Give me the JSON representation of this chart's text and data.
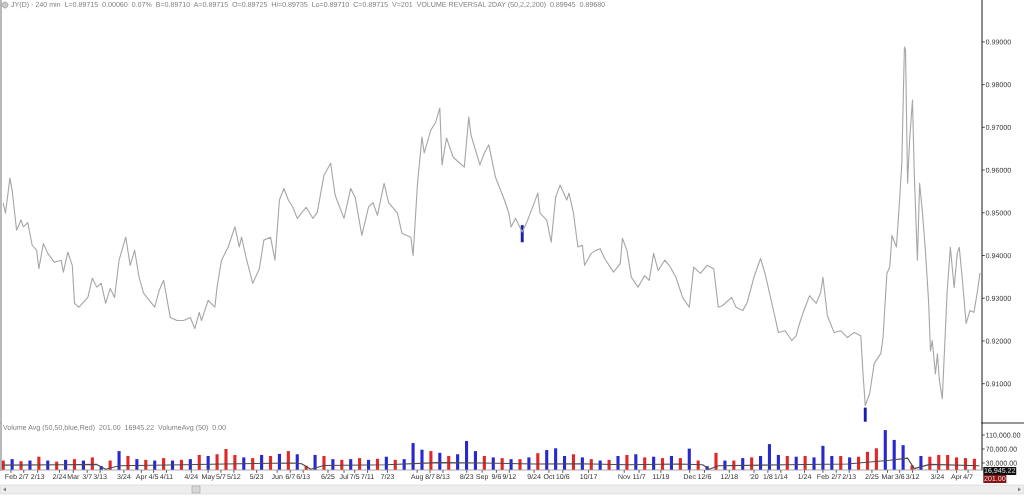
{
  "chart_data": [
    {
      "type": "line",
      "title": "JY(D) - 240 min  L=0.89715  0.00060  0.07%  B=0.89710  A=0.89715  O=0.89725  Hi=0.89735  Lo=0.89710  C=0.89715  V=201  VOLUME REVERSAL 2DAY (50,2,2,200)  0.89945  0.89680",
      "series": [
        {
          "color": "#a6a6a6",
          "x": [
            "2019-01-29",
            "2019-01-30",
            "2019-02-01",
            "2019-02-02",
            "2019-02-04",
            "2019-02-06",
            "2019-02-07",
            "2019-02-09",
            "2019-02-11",
            "2019-02-13",
            "2019-02-14",
            "2019-02-16",
            "2019-02-18",
            "2019-02-21",
            "2019-02-24",
            "2019-02-25",
            "2019-02-27",
            "2019-03-01",
            "2019-03-02",
            "2019-03-04",
            "2019-03-08",
            "2019-03-10",
            "2019-03-12",
            "2019-03-14",
            "2019-03-16",
            "2019-03-18",
            "2019-03-20",
            "2019-03-22",
            "2019-03-25",
            "2019-03-27",
            "2019-03-29",
            "2019-03-31",
            "2019-04-02",
            "2019-04-07",
            "2019-04-09",
            "2019-04-11",
            "2019-04-14",
            "2019-04-17",
            "2019-04-20",
            "2019-04-23",
            "2019-04-25",
            "2019-04-27",
            "2019-04-28",
            "2019-05-01",
            "2019-05-04",
            "2019-05-05",
            "2019-05-07",
            "2019-05-10",
            "2019-05-13",
            "2019-05-15",
            "2019-05-16",
            "2019-05-18",
            "2019-05-21",
            "2019-05-24",
            "2019-05-26",
            "2019-05-29",
            "2019-05-31",
            "2019-06-02",
            "2019-06-04",
            "2019-06-06",
            "2019-06-08",
            "2019-06-10",
            "2019-06-14",
            "2019-06-17",
            "2019-06-19",
            "2019-06-22",
            "2019-06-25",
            "2019-06-27",
            "2019-07-01",
            "2019-07-04",
            "2019-07-06",
            "2019-07-09",
            "2019-07-12",
            "2019-07-14",
            "2019-07-16",
            "2019-07-19",
            "2019-07-21",
            "2019-07-25",
            "2019-07-27",
            "2019-07-31",
            "2019-08-01",
            "2019-08-03",
            "2019-08-05",
            "2019-08-06",
            "2019-08-09",
            "2019-08-11",
            "2019-08-13",
            "2019-08-14",
            "2019-08-16",
            "2019-08-19",
            "2019-08-22",
            "2019-08-24",
            "2019-08-26",
            "2019-08-27",
            "2019-08-31",
            "2019-09-02",
            "2019-09-04",
            "2019-09-07",
            "2019-09-11",
            "2019-09-13",
            "2019-09-14",
            "2019-09-16",
            "2019-09-19",
            "2019-09-21",
            "2019-09-24",
            "2019-09-26",
            "2019-09-27",
            "2019-09-30",
            "2019-10-02",
            "2019-10-04",
            "2019-10-06",
            "2019-10-09",
            "2019-10-10",
            "2019-10-12",
            "2019-10-14",
            "2019-10-16",
            "2019-10-17",
            "2019-10-20",
            "2019-10-22",
            "2019-10-24",
            "2019-10-26",
            "2019-10-30",
            "2019-11-02",
            "2019-11-03",
            "2019-11-05",
            "2019-11-07",
            "2019-11-10",
            "2019-11-13",
            "2019-11-15",
            "2019-11-17",
            "2019-11-19",
            "2019-11-22",
            "2019-11-24",
            "2019-11-27",
            "2019-11-30",
            "2019-12-03",
            "2019-12-05",
            "2019-12-08",
            "2019-12-11",
            "2019-12-14",
            "2019-12-16",
            "2019-12-18",
            "2019-12-22",
            "2019-12-24",
            "2019-12-27",
            "2019-12-29",
            "2020-01-01",
            "2020-01-04",
            "2020-01-06",
            "2020-01-10",
            "2020-01-12",
            "2020-01-15",
            "2020-01-18",
            "2020-01-20",
            "2020-01-21",
            "2020-01-23",
            "2020-01-26",
            "2020-01-29",
            "2020-01-31",
            "2020-02-01",
            "2020-02-03",
            "2020-02-06",
            "2020-02-09",
            "2020-02-12",
            "2020-02-15",
            "2020-02-18",
            "2020-02-19",
            "2020-02-20",
            "2020-02-22",
            "2020-02-24",
            "2020-02-27",
            "2020-02-28",
            "2020-02-29T17:00",
            "2020-03-02",
            "2020-03-03",
            "2020-03-05",
            "2020-03-06T12:00",
            "2020-03-07T10:00",
            "2020-03-08T14:00",
            "2020-03-09T02:00",
            "2020-03-10",
            "2020-03-10T22:00",
            "2020-03-12T05:00",
            "2020-03-13",
            "2020-03-14T10:00",
            "2020-03-15T10:00",
            "2020-03-16T17:00",
            "2020-03-18",
            "2020-03-19T10:00",
            "2020-03-20T07:00",
            "2020-03-21T02:00",
            "2020-03-22T12:00",
            "2020-03-23T10:00",
            "2020-03-24T07:00",
            "2020-03-25T14:00",
            "2020-03-26T22:00",
            "2020-03-27T19:00",
            "2020-03-29T05:00",
            "2020-03-30T22:00",
            "2020-04-01T07:00",
            "2020-04-02T05:00",
            "2020-04-03T12:00",
            "2020-04-05T07:00",
            "2020-04-07",
            "2020-04-08T19:00",
            "2020-04-10T05:00",
            "2020-04-11T12:00"
          ],
          "values": [
            0.9522,
            0.9499,
            0.9581,
            0.9553,
            0.9459,
            0.9483,
            0.9467,
            0.9477,
            0.9424,
            0.9412,
            0.9369,
            0.9428,
            0.9405,
            0.9384,
            0.9389,
            0.9361,
            0.9408,
            0.9377,
            0.9288,
            0.9279,
            0.9302,
            0.9347,
            0.9326,
            0.9335,
            0.9288,
            0.9323,
            0.9302,
            0.9389,
            0.9443,
            0.9377,
            0.9412,
            0.9349,
            0.9312,
            0.9279,
            0.9318,
            0.9342,
            0.9255,
            0.9248,
            0.9248,
            0.9255,
            0.9229,
            0.9267,
            0.9248,
            0.9295,
            0.9279,
            0.9326,
            0.9389,
            0.942,
            0.9467,
            0.942,
            0.9443,
            0.9396,
            0.9335,
            0.9369,
            0.9436,
            0.9443,
            0.9389,
            0.953,
            0.9557,
            0.953,
            0.9513,
            0.9487,
            0.9513,
            0.9487,
            0.9501,
            0.9588,
            0.9616,
            0.9541,
            0.9487,
            0.9557,
            0.9536,
            0.9447,
            0.9513,
            0.9524,
            0.9494,
            0.9569,
            0.9524,
            0.9499,
            0.9452,
            0.9443,
            0.94,
            0.9569,
            0.9677,
            0.964,
            0.9694,
            0.971,
            0.9745,
            0.9612,
            0.9675,
            0.963,
            0.9616,
            0.9607,
            0.9724,
            0.9682,
            0.9612,
            0.964,
            0.9659,
            0.9583,
            0.953,
            0.9499,
            0.9467,
            0.9487,
            0.9455,
            0.9477,
            0.9518,
            0.9546,
            0.9499,
            0.9483,
            0.9431,
            0.9536,
            0.9565,
            0.953,
            0.9546,
            0.9499,
            0.942,
            0.9424,
            0.9377,
            0.9405,
            0.9412,
            0.9416,
            0.9393,
            0.9361,
            0.9381,
            0.944,
            0.9412,
            0.9349,
            0.9326,
            0.9353,
            0.9342,
            0.9405,
            0.9365,
            0.9389,
            0.9377,
            0.9349,
            0.9302,
            0.9279,
            0.9373,
            0.9358,
            0.9377,
            0.9369,
            0.9279,
            0.9283,
            0.9302,
            0.9279,
            0.9271,
            0.929,
            0.9349,
            0.9393,
            0.9358,
            0.9267,
            0.922,
            0.9224,
            0.9201,
            0.9212,
            0.9232,
            0.9265,
            0.9306,
            0.9288,
            0.9314,
            0.9349,
            0.9259,
            0.922,
            0.9224,
            0.9208,
            0.922,
            0.9212,
            0.9124,
            0.9049,
            0.9077,
            0.9147,
            0.9171,
            0.9208,
            0.9358,
            0.9373,
            0.9447,
            0.942,
            0.9536,
            0.9616,
            0.9888,
            0.9881,
            0.9569,
            0.967,
            0.9764,
            0.9593,
            0.9389,
            0.9569,
            0.9499,
            0.9412,
            0.9295,
            0.9177,
            0.9201,
            0.9123,
            0.917,
            0.9107,
            0.9065,
            0.9217,
            0.9318,
            0.9419,
            0.9325,
            0.9405,
            0.9419,
            0.9349,
            0.9241,
            0.9271,
            0.9267,
            0.9311,
            0.9358
          ]
        },
        {
          "type": "bar",
          "color": "#1a1ab4",
          "x": [
            "2019-09-19",
            "2020-02-20"
          ],
          "base": [
            0.9431,
            0.9011
          ],
          "values": [
            0.004,
            0.0033
          ]
        }
      ],
      "line_style": "solid",
      "xlim": [
        "2019-01-28",
        "2020-04-12T10:00"
      ],
      "ylim": [
        0.9008,
        0.9998
      ],
      "yticks": [
        {
          "value": 0.91,
          "label": "0.91000"
        },
        {
          "value": 0.92,
          "label": "0.92000"
        },
        {
          "value": 0.93,
          "label": "0.93000"
        },
        {
          "value": 0.94,
          "label": "0.94000"
        },
        {
          "value": 0.95,
          "label": "0.95000"
        },
        {
          "value": 0.96,
          "label": "0.96000"
        },
        {
          "value": 0.97,
          "label": "0.97000"
        },
        {
          "value": 0.98,
          "label": "0.98000"
        },
        {
          "value": 0.99,
          "label": "0.99000"
        }
      ],
      "tick_labels": "y"
    },
    {
      "type": "bar",
      "title": "Volume Avg (50,50,blue,Red)  201.00  16945.22  VolumeAvg (50)  0.00",
      "series": [
        {
          "x": [
            "2019-01-29",
            "2019-02-02",
            "2019-02-06",
            "2019-02-10",
            "2019-02-14",
            "2019-02-18",
            "2019-02-22",
            "2019-02-26",
            "2019-03-02",
            "2019-03-06",
            "2019-03-10",
            "2019-03-14",
            "2019-03-18",
            "2019-03-22",
            "2019-03-26",
            "2019-03-30",
            "2019-04-03",
            "2019-04-07",
            "2019-04-11",
            "2019-04-15",
            "2019-04-19",
            "2019-04-23",
            "2019-04-27",
            "2019-05-01",
            "2019-05-05",
            "2019-05-09",
            "2019-05-13",
            "2019-05-17",
            "2019-05-21",
            "2019-05-25",
            "2019-05-29",
            "2019-06-02",
            "2019-06-06",
            "2019-06-10",
            "2019-06-14",
            "2019-06-18",
            "2019-06-22",
            "2019-06-26",
            "2019-06-30",
            "2019-07-04",
            "2019-07-08",
            "2019-07-12",
            "2019-07-16",
            "2019-07-20",
            "2019-07-24",
            "2019-07-28",
            "2019-08-01",
            "2019-08-05",
            "2019-08-09",
            "2019-08-13",
            "2019-08-17",
            "2019-08-21",
            "2019-08-25",
            "2019-08-29",
            "2019-09-02",
            "2019-09-06",
            "2019-09-10",
            "2019-09-14",
            "2019-09-18",
            "2019-09-22",
            "2019-09-26",
            "2019-09-30",
            "2019-10-04",
            "2019-10-08",
            "2019-10-12",
            "2019-10-16",
            "2019-10-20",
            "2019-10-24",
            "2019-10-28",
            "2019-11-01",
            "2019-11-05",
            "2019-11-09",
            "2019-11-13",
            "2019-11-17",
            "2019-11-21",
            "2019-11-25",
            "2019-11-29",
            "2019-12-03",
            "2019-12-07",
            "2019-12-11",
            "2019-12-15",
            "2019-12-19",
            "2019-12-23",
            "2019-12-27",
            "2019-12-31",
            "2020-01-04",
            "2020-01-08",
            "2020-01-12",
            "2020-01-16",
            "2020-01-20",
            "2020-01-24",
            "2020-01-28",
            "2020-02-01",
            "2020-02-05",
            "2020-02-09",
            "2020-02-13",
            "2020-02-17",
            "2020-02-21",
            "2020-02-25",
            "2020-02-29",
            "2020-03-04",
            "2020-03-08",
            "2020-03-12",
            "2020-03-16",
            "2020-03-20",
            "2020-03-24",
            "2020-03-28",
            "2020-04-01",
            "2020-04-05",
            "2020-04-09"
          ],
          "values": [
            37000,
            41000,
            35000,
            37000,
            48000,
            37000,
            34000,
            39000,
            41000,
            37000,
            46000,
            21000,
            37000,
            64000,
            50000,
            41000,
            39000,
            37000,
            44000,
            37000,
            39000,
            41000,
            53000,
            50000,
            55000,
            70000,
            53000,
            46000,
            44000,
            53000,
            50000,
            56000,
            64000,
            55000,
            22000,
            53000,
            50000,
            41000,
            39000,
            41000,
            44000,
            39000,
            42000,
            48000,
            39000,
            41000,
            87000,
            68000,
            64000,
            59000,
            50000,
            55000,
            93000,
            64000,
            50000,
            46000,
            44000,
            41000,
            41000,
            46000,
            58000,
            67000,
            72000,
            50000,
            55000,
            46000,
            41000,
            37000,
            39000,
            50000,
            53000,
            55000,
            46000,
            48000,
            44000,
            50000,
            44000,
            71000,
            37000,
            21000,
            59000,
            37000,
            37000,
            44000,
            46000,
            50000,
            84000,
            53000,
            50000,
            48000,
            50000,
            46000,
            79000,
            50000,
            50000,
            46000,
            48000,
            62000,
            72000,
            124000,
            96000,
            81000,
            23000,
            50000,
            48000,
            53000,
            53000,
            46000,
            44000,
            42000
          ],
          "colors": [
            "#e02828",
            "#2828d0",
            "#e02828",
            "#2828d0",
            "#e02828",
            "#2828d0",
            "#e02828",
            "#2828d0",
            "#e02828",
            "#2828d0",
            "#e02828",
            "#2828d0",
            "#e02828",
            "#2828d0",
            "#e02828",
            "#2828d0",
            "#e02828",
            "#2828d0",
            "#e02828",
            "#2828d0",
            "#e02828",
            "#2828d0",
            "#e02828",
            "#2828d0",
            "#e02828",
            "#e02828",
            "#e02828",
            "#2828d0",
            "#e02828",
            "#2828d0",
            "#e02828",
            "#2828d0",
            "#e02828",
            "#2828d0",
            "#e02828",
            "#2828d0",
            "#e02828",
            "#2828d0",
            "#e02828",
            "#2828d0",
            "#e02828",
            "#2828d0",
            "#e02828",
            "#2828d0",
            "#e02828",
            "#2828d0",
            "#2828d0",
            "#2828d0",
            "#e02828",
            "#2828d0",
            "#e02828",
            "#2828d0",
            "#2828d0",
            "#2828d0",
            "#e02828",
            "#2828d0",
            "#e02828",
            "#2828d0",
            "#e02828",
            "#2828d0",
            "#e02828",
            "#2828d0",
            "#2828d0",
            "#2828d0",
            "#e02828",
            "#2828d0",
            "#e02828",
            "#2828d0",
            "#e02828",
            "#2828d0",
            "#e02828",
            "#2828d0",
            "#e02828",
            "#2828d0",
            "#e02828",
            "#2828d0",
            "#e02828",
            "#2828d0",
            "#e02828",
            "#2828d0",
            "#e02828",
            "#2828d0",
            "#e02828",
            "#2828d0",
            "#e02828",
            "#2828d0",
            "#2828d0",
            "#2828d0",
            "#e02828",
            "#2828d0",
            "#e02828",
            "#2828d0",
            "#2828d0",
            "#2828d0",
            "#e02828",
            "#2828d0",
            "#e02828",
            "#e02828",
            "#e02828",
            "#2828d0",
            "#2828d0",
            "#2828d0",
            "#e02828",
            "#2828d0",
            "#e02828",
            "#e02828",
            "#e02828",
            "#e02828",
            "#e02828",
            "#e02828"
          ]
        },
        {
          "type": "line",
          "color": "#4a4a4a",
          "x": [
            "2019-01-29",
            "2019-02-25",
            "2019-03-12",
            "2019-03-16",
            "2019-03-22",
            "2019-04-20",
            "2019-05-15",
            "2019-06-08",
            "2019-06-12",
            "2019-06-16",
            "2019-06-22",
            "2019-07-20",
            "2019-08-12",
            "2019-09-01",
            "2019-09-25",
            "2019-10-15",
            "2019-11-05",
            "2019-11-28",
            "2019-12-09",
            "2019-12-12",
            "2019-12-16",
            "2020-01-15",
            "2020-02-12",
            "2020-03-02",
            "2020-03-10",
            "2020-03-13",
            "2020-03-20",
            "2020-04-11"
          ],
          "values": [
            24000,
            25000,
            26000,
            12000,
            22000,
            25000,
            28000,
            30000,
            28000,
            12000,
            23000,
            25000,
            31000,
            30000,
            27000,
            28000,
            25000,
            27000,
            25000,
            12000,
            22000,
            25000,
            27000,
            38000,
            44000,
            14000,
            26000,
            22000
          ]
        }
      ],
      "annotations": [
        "16,945.22",
        "201.00"
      ],
      "line_style": "solid",
      "xlim": [
        "2019-01-28",
        "2020-04-12T10:00"
      ],
      "ylim": [
        10000,
        144300
      ],
      "yticks": [
        {
          "value": 30000,
          "label": "30,000.00"
        },
        {
          "value": 70000,
          "label": "70,000.00"
        },
        {
          "value": 110000,
          "label": "110,000.00"
        }
      ],
      "xticks": [
        {
          "value": "2019-02-01T11:00",
          "label": "Feb"
        },
        {
          "value": "2019-02-07T05:00",
          "label": "2/7"
        },
        {
          "value": "2019-02-13T11:00",
          "label": "2/13"
        },
        {
          "value": "2019-02-23T06:00",
          "label": "2/24"
        },
        {
          "value": "2019-03-01T11:00",
          "label": "Mar"
        },
        {
          "value": "2019-03-07T17:00",
          "label": "3/7"
        },
        {
          "value": "2019-03-13T12:00",
          "label": "3/13"
        },
        {
          "value": "2019-03-24T04:00",
          "label": "3/24"
        },
        {
          "value": "2019-04-01",
          "label": "Apr"
        },
        {
          "value": "2019-04-06T12:00",
          "label": "4/5"
        },
        {
          "value": "2019-04-12T07:00",
          "label": "4/11"
        },
        {
          "value": "2019-04-23T10:00",
          "label": "4/24"
        },
        {
          "value": "2019-05-01",
          "label": "May"
        },
        {
          "value": "2019-05-06T18:00",
          "label": "5/7"
        },
        {
          "value": "2019-05-12T13:00",
          "label": "5/12"
        },
        {
          "value": "2019-05-22T18:00",
          "label": "5/23"
        },
        {
          "value": "2019-06-01",
          "label": "Jun"
        },
        {
          "value": "2019-06-06T21:00",
          "label": "6/7"
        },
        {
          "value": "2019-06-12T16:00",
          "label": "6/13"
        },
        {
          "value": "2019-06-23T19:00",
          "label": "6/25"
        },
        {
          "value": "2019-07-01",
          "label": "Jul"
        },
        {
          "value": "2019-07-05T19:00",
          "label": "7/5"
        },
        {
          "value": "2019-07-11T14:00",
          "label": "7/11"
        },
        {
          "value": "2019-07-20T12:00",
          "label": "7/23"
        },
        {
          "value": "2019-08-02T20:00",
          "label": "Aug"
        },
        {
          "value": "2019-08-08T15:00",
          "label": "8/7"
        },
        {
          "value": "2019-08-14T10:00",
          "label": "8/13"
        },
        {
          "value": "2019-08-25T02:00",
          "label": "8/23"
        },
        {
          "value": "2019-09-01",
          "label": "Sep"
        },
        {
          "value": "2019-09-07T10:00",
          "label": "9/6"
        },
        {
          "value": "2019-09-13T05:00",
          "label": "9/12"
        },
        {
          "value": "2019-09-24T08:00",
          "label": "9/24"
        },
        {
          "value": "2019-10-01",
          "label": "Oct"
        },
        {
          "value": "2019-10-07T05:00",
          "label": "10/6"
        },
        {
          "value": "2019-10-18T19:00",
          "label": "10/17"
        },
        {
          "value": "2019-11-03T19:00",
          "label": "Nov"
        },
        {
          "value": "2019-11-10T11:00",
          "label": "11/7"
        },
        {
          "value": "2019-11-20T06:00",
          "label": "11/19"
        },
        {
          "value": "2019-12-03T04:00",
          "label": "Dec"
        },
        {
          "value": "2019-12-09T20:00",
          "label": "12/6"
        },
        {
          "value": "2019-12-20T23:00",
          "label": "12/18"
        },
        {
          "value": "2020-01-01T02:00",
          "label": "'20"
        },
        {
          "value": "2020-01-07T07:00",
          "label": "1/8"
        },
        {
          "value": "2020-01-13T02:00",
          "label": "1/14"
        },
        {
          "value": "2020-01-23T18:00",
          "label": "1/24"
        },
        {
          "value": "2020-02-01",
          "label": "Feb"
        },
        {
          "value": "2020-02-07",
          "label": "2/7"
        },
        {
          "value": "2020-02-12T19:00",
          "label": "2/13"
        },
        {
          "value": "2020-02-23",
          "label": "2/25"
        },
        {
          "value": "2020-03-01",
          "label": "Mar"
        },
        {
          "value": "2020-03-06T11:00",
          "label": "3/6"
        },
        {
          "value": "2020-03-12T06:00",
          "label": "3/12"
        },
        {
          "value": "2020-03-23T09:00",
          "label": "3/24"
        },
        {
          "value": "2020-04-01",
          "label": "Apr"
        },
        {
          "value": "2020-04-06T04:00",
          "label": "4/7"
        }
      ]
    }
  ]
}
